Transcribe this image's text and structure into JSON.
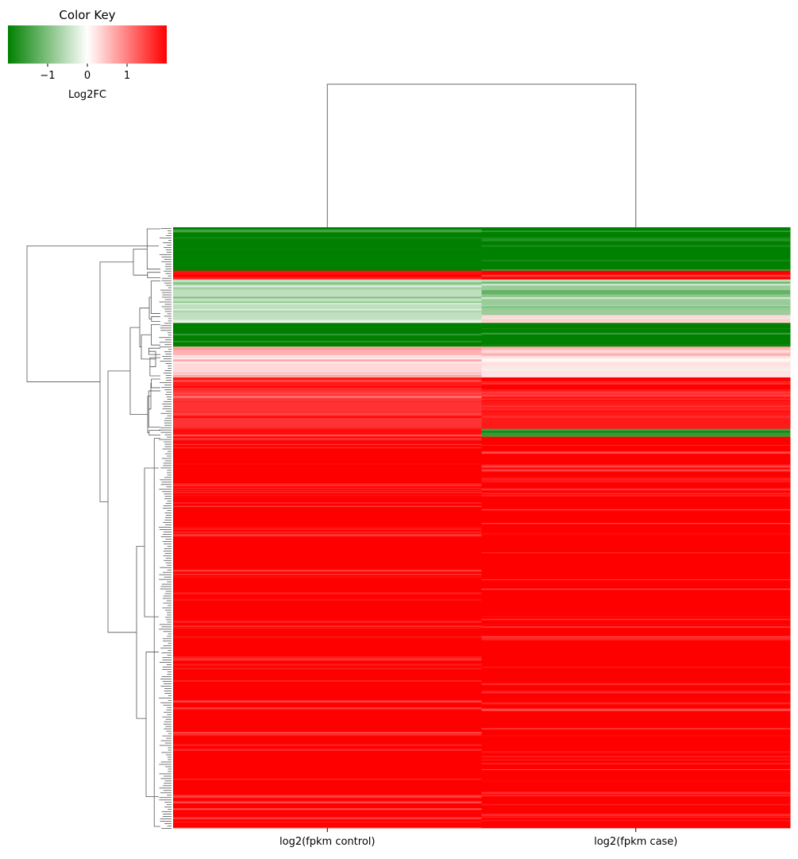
{
  "chart_data": {
    "type": "heatmap",
    "subtype": "clustermap",
    "columns": [
      "log2(fpkm control)",
      "log2(fpkm case)"
    ],
    "color_key": {
      "title": "Color Key",
      "label": "Log2FC",
      "ticks": [
        -1,
        0,
        1
      ],
      "tick_labels": [
        "−1",
        "0",
        "1"
      ],
      "vmin": -2,
      "vmax": 2,
      "colors": [
        "#008000",
        "#ffffff",
        "#ff0000"
      ]
    },
    "row_blocks": [
      {
        "rows": 55,
        "control": -2.0,
        "case": -2.0
      },
      {
        "rows": 11,
        "control": 2.0,
        "case": 2.0
      },
      {
        "rows": 45,
        "control": -0.5,
        "case": -0.8
      },
      {
        "rows": 10,
        "control": -0.5,
        "case": 0.3
      },
      {
        "rows": 30,
        "control": -2.0,
        "case": -2.0
      },
      {
        "rows": 12,
        "control": 0.6,
        "case": 0.6
      },
      {
        "rows": 27,
        "control": 0.3,
        "case": 0.2
      },
      {
        "rows": 15,
        "control": 1.8,
        "case": 2.0
      },
      {
        "rows": 50,
        "control": 1.6,
        "case": 1.8
      },
      {
        "rows": 10,
        "control": 1.9,
        "case": -1.5
      },
      {
        "rows": 495,
        "control": 2.0,
        "case": 2.0
      }
    ],
    "column_dendrogram": {
      "merge_height": 1
    },
    "row_dendrogram": {
      "clusters": 11
    }
  }
}
